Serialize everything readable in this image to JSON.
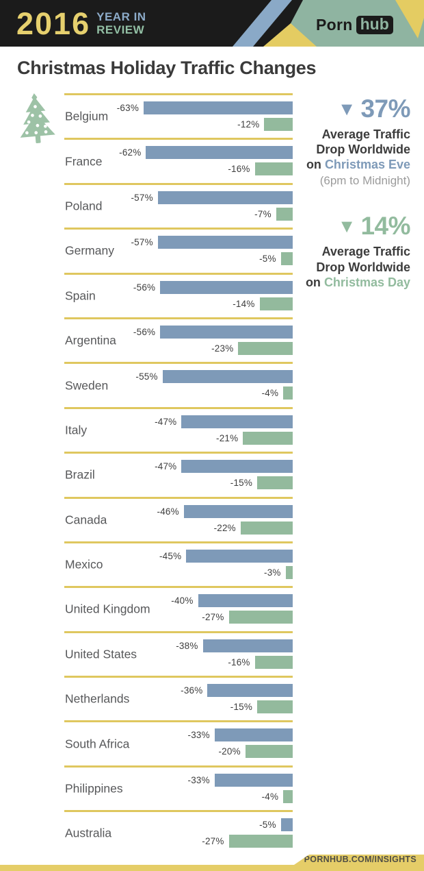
{
  "header": {
    "year": "2016",
    "tagline_line1": "YEAR IN",
    "tagline_line2": "REVIEW",
    "brand": {
      "porn": "Porn",
      "hub": "hub"
    }
  },
  "title": "Christmas Holiday Traffic Changes",
  "chart_data": {
    "type": "bar",
    "orientation": "horizontal",
    "title": "Christmas Holiday Traffic Changes",
    "categories": [
      "Belgium",
      "France",
      "Poland",
      "Germany",
      "Spain",
      "Argentina",
      "Sweden",
      "Italy",
      "Brazil",
      "Canada",
      "Mexico",
      "United Kingdom",
      "United States",
      "Netherlands",
      "South Africa",
      "Philippines",
      "Australia"
    ],
    "series": [
      {
        "name": "Christmas Eve",
        "color": "#7e9ab8",
        "values": [
          -63,
          -62,
          -57,
          -57,
          -56,
          -56,
          -55,
          -47,
          -47,
          -46,
          -45,
          -40,
          -38,
          -36,
          -33,
          -33,
          -5
        ]
      },
      {
        "name": "Christmas Day",
        "color": "#93ba9d",
        "values": [
          -12,
          -16,
          -7,
          -5,
          -14,
          -23,
          -4,
          -21,
          -15,
          -22,
          -3,
          -27,
          -16,
          -15,
          -20,
          -4,
          -27
        ]
      }
    ],
    "value_suffix": "%",
    "xlim": [
      -65,
      0
    ],
    "grid": "row-dividers",
    "legend_position": "right-panel"
  },
  "stats": {
    "eve": {
      "arrow": "▼",
      "value": "37%",
      "line1": "Average Traffic",
      "line2": "Drop Worldwide",
      "line3_prefix": "on",
      "line3_highlight": "Christmas Eve",
      "note": "(6pm to Midnight)",
      "color": "#7e9ab8"
    },
    "day": {
      "arrow": "▼",
      "value": "14%",
      "line1": "Average Traffic",
      "line2": "Drop Worldwide",
      "line3_prefix": "on",
      "line3_highlight": "Christmas Day",
      "color": "#93ba9d"
    }
  },
  "footer": {
    "url_label": "PORNHUB.COM/INSIGHTS"
  },
  "colors": {
    "eve_blue": "#7e9ab8",
    "day_green": "#93ba9d",
    "divider_yellow": "#dfc75f",
    "footer_yellow": "#e5cd68",
    "header_bg": "#1b1b1b",
    "header_green": "#8fb4a1",
    "header_blue": "#8aa9c7",
    "header_yellow": "#e4cc62",
    "tree_green": "#9dc2a6"
  }
}
